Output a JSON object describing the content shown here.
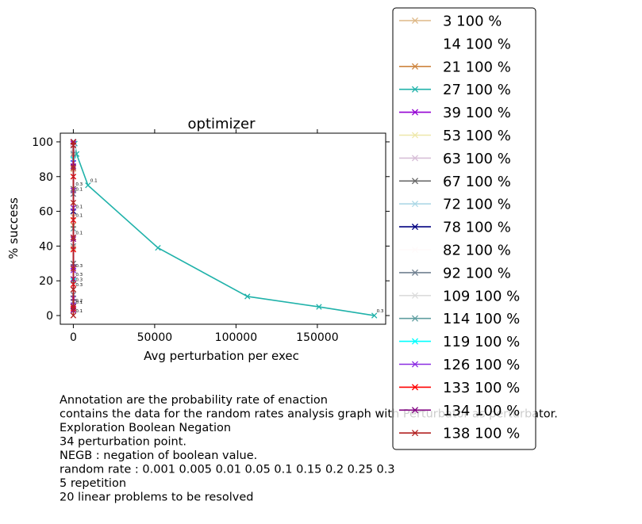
{
  "chart_data": {
    "type": "line",
    "title": "optimizer",
    "xlabel": "Avg perturbation per exec",
    "ylabel": "% success",
    "xlim": [
      -8000,
      192000
    ],
    "ylim": [
      -5,
      105
    ],
    "xticks": [
      0,
      50000,
      100000,
      150000
    ],
    "xtick_labels": [
      "0",
      "50000",
      "100000",
      "150000"
    ],
    "yticks": [
      0,
      20,
      40,
      60,
      80,
      100
    ],
    "ytick_labels": [
      "0",
      "20",
      "40",
      "60",
      "80",
      "100"
    ],
    "grid": false,
    "legend_placement": "outside-right",
    "series": [
      {
        "name": "3 100 %",
        "color": "#deb887",
        "x": [
          0,
          0,
          0,
          0,
          0,
          0,
          0,
          0,
          0
        ],
        "y": [
          100,
          100,
          99,
          97,
          92,
          84,
          73,
          57,
          39
        ]
      },
      {
        "name": "14 100 %",
        "color": "#ffffff",
        "x": [
          0,
          0,
          0
        ],
        "y": [
          100,
          98,
          95
        ]
      },
      {
        "name": "21 100 %",
        "color": "#cd853f",
        "x": [
          0,
          0,
          0,
          0,
          0,
          0
        ],
        "y": [
          100,
          99,
          95,
          85,
          70,
          52
        ]
      },
      {
        "name": "27 100 %",
        "color": "#20b2aa",
        "x": [
          0,
          200,
          900,
          2000,
          9000,
          52000,
          107000,
          151000,
          185000
        ],
        "y": [
          100,
          100,
          99,
          93,
          75,
          39,
          11,
          5,
          0
        ],
        "labels": [
          "",
          "",
          "",
          "",
          "0.1",
          "",
          "",
          "",
          "0.3"
        ]
      },
      {
        "name": "39 100 %",
        "color": "#9400d3",
        "x": [
          0,
          0,
          0,
          0,
          0,
          0,
          0,
          0,
          0
        ],
        "y": [
          100,
          99,
          96,
          90,
          72,
          45,
          28,
          10,
          3
        ],
        "labels": [
          "",
          "",
          "",
          "",
          "",
          "0.1",
          "",
          "",
          ""
        ]
      },
      {
        "name": "53 100 %",
        "color": "#eee8aa",
        "x": [
          0,
          0,
          0,
          0
        ],
        "y": [
          100,
          98,
          90,
          60
        ],
        "labels": [
          "",
          "",
          "",
          "0.1"
        ]
      },
      {
        "name": "63 100 %",
        "color": "#d8bfd8",
        "x": [
          0,
          0,
          0,
          0
        ],
        "y": [
          100,
          97,
          88,
          70
        ]
      },
      {
        "name": "67 100 %",
        "color": "#696969",
        "x": [
          0,
          0,
          0,
          0,
          0
        ],
        "y": [
          100,
          96,
          73,
          30,
          8
        ],
        "labels": [
          "",
          "",
          "0.3",
          "",
          ""
        ]
      },
      {
        "name": "72 100 %",
        "color": "#add8e6",
        "x": [
          0,
          0,
          0
        ],
        "y": [
          100,
          95,
          80
        ]
      },
      {
        "name": "78 100 %",
        "color": "#000080",
        "x": [
          0,
          0,
          0,
          0
        ],
        "y": [
          100,
          90,
          60,
          5
        ],
        "labels": [
          "",
          "",
          "",
          "0.1"
        ]
      },
      {
        "name": "82 100 %",
        "color": "#fffafa",
        "x": [
          0,
          0,
          0
        ],
        "y": [
          100,
          97,
          90
        ]
      },
      {
        "name": "92 100 %",
        "color": "#708090",
        "x": [
          0,
          0,
          0,
          0,
          0
        ],
        "y": [
          100,
          93,
          70,
          40,
          12
        ],
        "labels": [
          "",
          "",
          "0.1",
          "",
          ""
        ]
      },
      {
        "name": "109 100 %",
        "color": "#dcdcdc",
        "x": [
          0,
          0,
          0
        ],
        "y": [
          100,
          96,
          85
        ]
      },
      {
        "name": "114 100 %",
        "color": "#5f9ea0",
        "x": [
          0,
          0,
          0,
          0
        ],
        "y": [
          100,
          98,
          80,
          50
        ]
      },
      {
        "name": "119 100 %",
        "color": "#00ffff",
        "x": [
          0,
          0,
          0
        ],
        "y": [
          100,
          90,
          20
        ]
      },
      {
        "name": "126 100 %",
        "color": "#8a2be2",
        "x": [
          0,
          0,
          0,
          0,
          0
        ],
        "y": [
          100,
          88,
          62,
          26,
          6
        ],
        "labels": [
          "",
          "",
          "",
          "0.3",
          "0.2"
        ]
      },
      {
        "name": "133 100 %",
        "color": "#ff0000",
        "x": [
          0,
          0,
          0,
          0,
          0,
          0
        ],
        "y": [
          100,
          80,
          55,
          38,
          18,
          4
        ],
        "labels": [
          "",
          "",
          "0.1",
          "",
          "0.3",
          ""
        ]
      },
      {
        "name": "134 100 %",
        "color": "#800080",
        "x": [
          0,
          0,
          0,
          0,
          0
        ],
        "y": [
          100,
          86,
          44,
          21,
          3
        ],
        "labels": [
          "",
          "",
          "",
          "0.3",
          ""
        ]
      },
      {
        "name": "138 100 %",
        "color": "#b22222",
        "x": [
          0,
          0,
          0,
          0,
          0,
          0,
          0,
          0,
          0
        ],
        "y": [
          100,
          98,
          85,
          65,
          45,
          27,
          15,
          5,
          0
        ],
        "labels": [
          "",
          "",
          "",
          "",
          "",
          "",
          "0.3",
          "",
          "0.1"
        ]
      }
    ]
  },
  "notes": [
    "Annotation are the probability rate of enaction",
    "contains the data for the random rates analysis graph with Perturbator as perturbator.",
    "Exploration Boolean Negation",
    "34 perturbation point.",
    "NEGB : negation of boolean value.",
    "random rate : 0.001 0.005 0.01 0.05 0.1 0.15 0.2 0.25 0.3",
    "5 repetition",
    "20 linear problems to be resolved"
  ]
}
